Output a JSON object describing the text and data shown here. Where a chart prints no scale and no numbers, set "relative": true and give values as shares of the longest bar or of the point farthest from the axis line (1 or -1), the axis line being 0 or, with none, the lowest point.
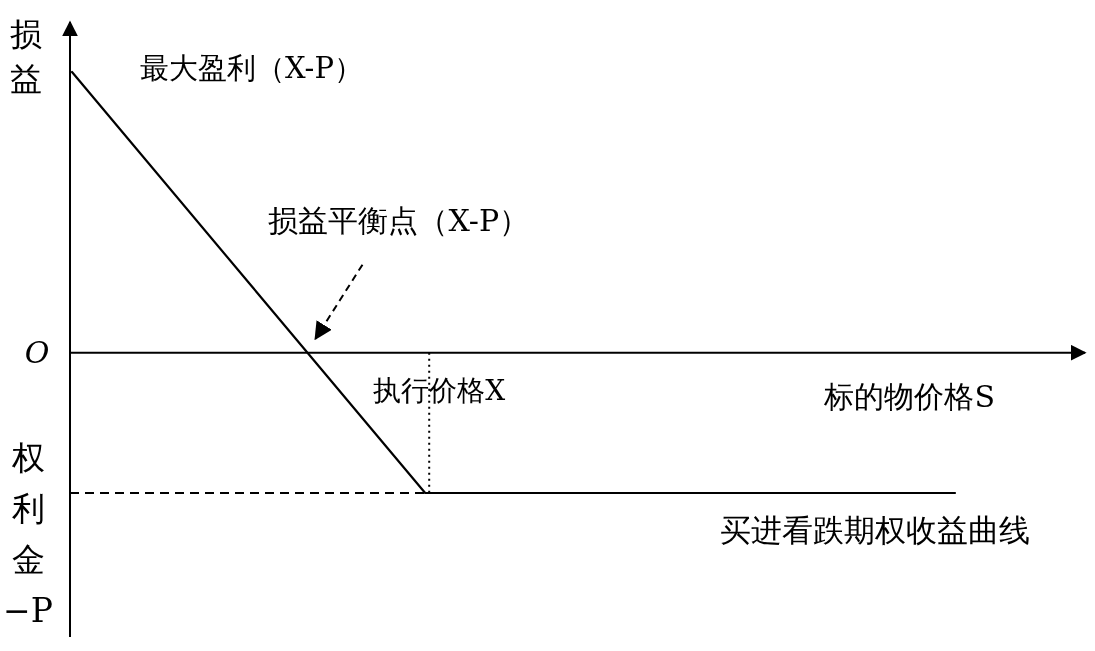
{
  "chart_data": {
    "type": "line",
    "relative": true,
    "xlabel": "标的物价格S",
    "ylabel": "损益",
    "categories": [
      null,
      null,
      null,
      null,
      null,
      null
    ],
    "series": [
      {
        "name": "买进看跌期权收益曲线",
        "color": "#000000",
        "values": [
          1,
          0.25,
          -0.5,
          -0.5,
          -0.5,
          -0.5
        ]
      }
    ],
    "annotations": [
      "最大盈利（X-P）",
      "损益平衡点（X-P）",
      "O",
      "执行价格X"
    ],
    "ref_lines": [
      {
        "axis": "y",
        "value": -0.5,
        "label": "权利金−P",
        "line_style": "dashed",
        "color": "#000000"
      }
    ],
    "marker": "none",
    "line_style": "solid",
    "grid": false,
    "legend": false
  }
}
